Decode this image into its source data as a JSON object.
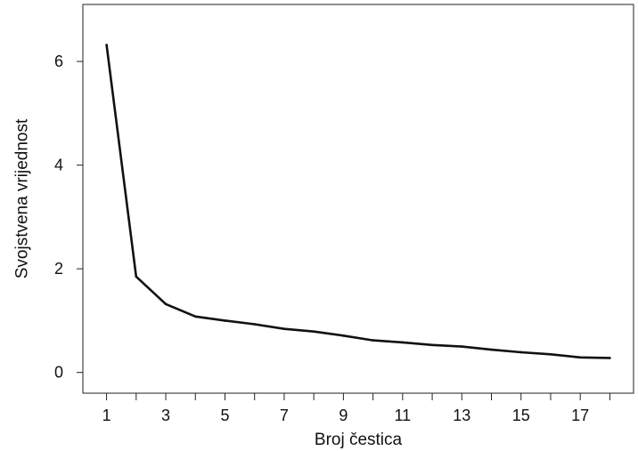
{
  "chart_data": {
    "type": "line",
    "title": "",
    "xlabel": "Broj čestica",
    "ylabel": "Svojstvena vrijednost",
    "x": [
      1,
      2,
      3,
      4,
      5,
      6,
      7,
      8,
      9,
      10,
      11,
      12,
      13,
      14,
      15,
      16,
      17,
      18
    ],
    "series": [
      {
        "values": [
          6.32,
          1.85,
          1.32,
          1.08,
          1.0,
          0.93,
          0.84,
          0.79,
          0.71,
          0.62,
          0.58,
          0.53,
          0.5,
          0.44,
          0.39,
          0.35,
          0.29,
          0.28
        ],
        "color": "#111111"
      }
    ],
    "xticks": [
      1,
      3,
      5,
      7,
      9,
      11,
      13,
      15,
      17
    ],
    "xlim": [
      0.2,
      18.8
    ],
    "yticks": [
      0,
      2,
      4,
      6
    ],
    "ylim": [
      -0.4,
      7.1
    ],
    "grid": false,
    "legend": "none"
  }
}
